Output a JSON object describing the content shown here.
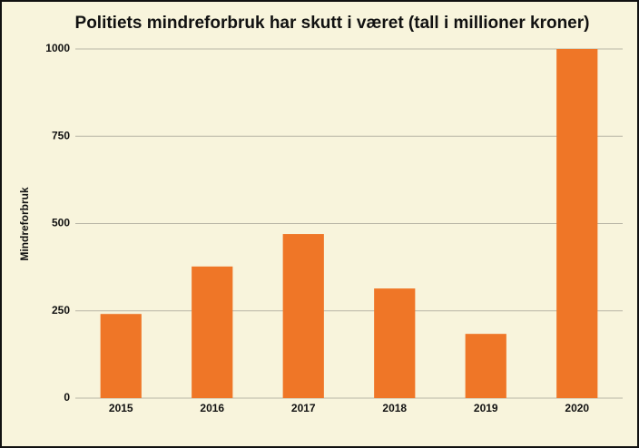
{
  "chart_data": {
    "type": "bar",
    "title": "Politiets mindreforbruk har skutt i været (tall i millioner kroner)",
    "y_label": "Mindreforbruk",
    "categories": [
      "2015",
      "2016",
      "2017",
      "2018",
      "2019",
      "2020"
    ],
    "values": [
      241,
      377,
      470,
      314,
      184,
      1000
    ],
    "color": "#ef7627",
    "ylim": [
      0,
      1000
    ],
    "yticks": [
      0,
      250,
      500,
      750,
      1000
    ],
    "grid": true
  }
}
